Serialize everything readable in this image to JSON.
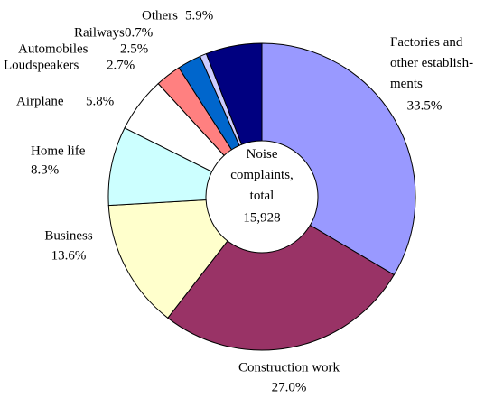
{
  "chart_data": {
    "type": "donut",
    "categories": [
      "Factories and\nother establish-\nments",
      "Construction work",
      "Business",
      "Home life",
      "Airplane",
      "Loudspeakers",
      "Automobiles",
      "Railways",
      "Others"
    ],
    "values": [
      33.5,
      27.0,
      13.6,
      8.3,
      5.8,
      2.7,
      2.5,
      0.7,
      5.9
    ],
    "value_labels": [
      "33.5%",
      "27.0%",
      "13.6%",
      "8.3%",
      "5.8%",
      "2.7%",
      "2.5%",
      "0.7%",
      "5.9%"
    ],
    "colors": [
      "#9999ff",
      "#993366",
      "#ffffcc",
      "#ccffff",
      "#ffffff",
      "#ff8080",
      "#0066cc",
      "#ccccff",
      "#000080"
    ],
    "center_text": "Noise\ncomplaints,\ntotal",
    "total": {
      "value": 15928,
      "label": "15,928"
    }
  }
}
